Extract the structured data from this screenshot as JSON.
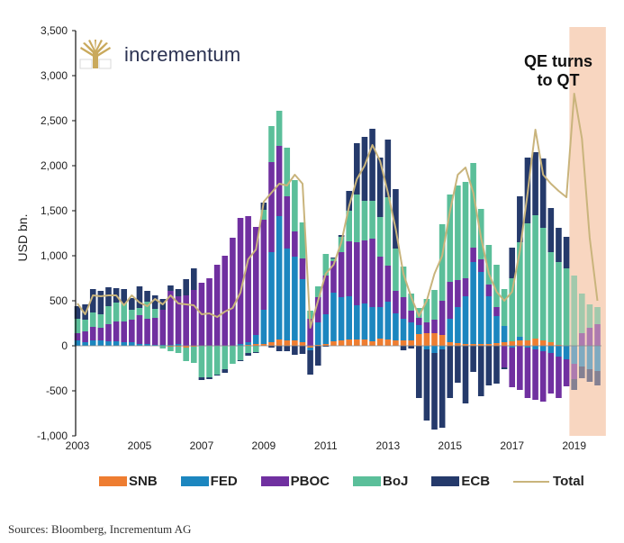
{
  "brand": {
    "name": "incrementum",
    "logo_icon": "tree-logo-icon"
  },
  "annotation": {
    "line1": "QE turns",
    "line2": "to QT"
  },
  "source": "Sources: Bloomberg, Incrementum AG",
  "colors": {
    "SNB": "#ee7d31",
    "FED": "#1c86bf",
    "PBOC": "#7030a0",
    "BoJ": "#5bbf9a",
    "ECB": "#253a6b",
    "Total": "#c9b47c",
    "highlight": "#f8d6c0"
  },
  "chart_data": {
    "type": "bar",
    "stacked": true,
    "title": "",
    "xlabel": "",
    "ylabel": "USD bn.",
    "ylim": [
      -1000,
      3500
    ],
    "yticks": [
      -1000,
      -500,
      0,
      500,
      1000,
      1500,
      2000,
      2500,
      3000,
      3500
    ],
    "ytick_labels": [
      "-1,000",
      "-500",
      "0",
      "500",
      "1,000",
      "1,500",
      "2,000",
      "2,500",
      "3,000",
      "3,500"
    ],
    "xticks": [
      "2003",
      "2005",
      "2007",
      "2009",
      "2011",
      "2013",
      "2015",
      "2017",
      "2019"
    ],
    "x_start": "2003Q1",
    "frequency": "quarterly",
    "highlight_region": {
      "from": "2019Q1",
      "to": "2019Q4",
      "label": "QE turns to QT"
    },
    "legend": [
      "SNB",
      "FED",
      "PBOC",
      "BoJ",
      "ECB",
      "Total"
    ],
    "legend_position": "bottom",
    "series": [
      {
        "name": "SNB",
        "values": [
          0,
          0,
          0,
          0,
          0,
          0,
          0,
          0,
          0,
          0,
          0,
          0,
          -10,
          -10,
          -20,
          -10,
          0,
          0,
          0,
          0,
          0,
          0,
          10,
          20,
          20,
          40,
          70,
          60,
          60,
          40,
          -20,
          10,
          20,
          50,
          60,
          70,
          70,
          70,
          50,
          80,
          70,
          60,
          60,
          60,
          130,
          140,
          140,
          120,
          40,
          30,
          20,
          20,
          20,
          20,
          30,
          40,
          50,
          60,
          60,
          80,
          60,
          40,
          10,
          0,
          0,
          0,
          0,
          0
        ]
      },
      {
        "name": "FED",
        "values": [
          60,
          40,
          60,
          60,
          50,
          50,
          40,
          40,
          20,
          20,
          10,
          10,
          10,
          20,
          0,
          0,
          0,
          0,
          0,
          0,
          0,
          20,
          30,
          100,
          380,
          1000,
          1370,
          1020,
          930,
          700,
          -30,
          250,
          330,
          540,
          480,
          480,
          380,
          400,
          380,
          350,
          420,
          300,
          240,
          200,
          100,
          -40,
          -80,
          -40,
          260,
          400,
          530,
          910,
          800,
          530,
          300,
          180,
          -20,
          40,
          -20,
          -40,
          -60,
          -80,
          -120,
          -150,
          -200,
          -230,
          -260,
          -280
        ]
      },
      {
        "name": "PBOC",
        "values": [
          80,
          120,
          150,
          140,
          190,
          220,
          230,
          250,
          320,
          280,
          300,
          390,
          600,
          530,
          560,
          620,
          700,
          750,
          900,
          1000,
          1200,
          1400,
          1400,
          1200,
          1000,
          1000,
          780,
          580,
          280,
          230,
          300,
          280,
          430,
          350,
          500,
          610,
          700,
          700,
          760,
          560,
          400,
          250,
          240,
          130,
          80,
          120,
          150,
          380,
          410,
          300,
          200,
          160,
          140,
          130,
          100,
          -240,
          -440,
          -490,
          -560,
          -560,
          -560,
          -450,
          -460,
          -300,
          -170,
          140,
          200,
          240
        ]
      },
      {
        "name": "BoJ",
        "values": [
          160,
          130,
          160,
          150,
          200,
          210,
          200,
          110,
          80,
          190,
          100,
          -30,
          -50,
          -70,
          -150,
          -180,
          -350,
          -350,
          -320,
          -260,
          -200,
          -160,
          -80,
          -70,
          110,
          400,
          390,
          540,
          570,
          400,
          90,
          120,
          240,
          30,
          170,
          340,
          530,
          440,
          420,
          440,
          760,
          470,
          340,
          190,
          110,
          260,
          330,
          850,
          970,
          1050,
          1070,
          940,
          560,
          440,
          470,
          410,
          700,
          1050,
          1300,
          1370,
          1250,
          1000,
          920,
          860,
          780,
          440,
          260,
          190
        ]
      },
      {
        "name": "ECB",
        "values": [
          140,
          170,
          260,
          260,
          210,
          160,
          160,
          130,
          240,
          120,
          150,
          120,
          60,
          80,
          180,
          240,
          -30,
          -20,
          -10,
          -40,
          0,
          -10,
          -30,
          -10,
          80,
          -20,
          -60,
          -60,
          -100,
          -90,
          -270,
          -220,
          -10,
          10,
          20,
          220,
          570,
          710,
          800,
          660,
          640,
          660,
          -50,
          -30,
          -580,
          -790,
          -850,
          -870,
          -580,
          -410,
          -640,
          -290,
          -560,
          -440,
          -420,
          -20,
          340,
          510,
          730,
          700,
          770,
          490,
          380,
          350,
          -120,
          -130,
          -140,
          -160
        ]
      },
      {
        "name": "Total",
        "values": [
          470,
          350,
          560,
          550,
          560,
          560,
          450,
          560,
          480,
          440,
          520,
          460,
          560,
          470,
          460,
          450,
          350,
          360,
          320,
          380,
          420,
          590,
          960,
          1070,
          1600,
          1700,
          1800,
          1780,
          1900,
          1800,
          200,
          500,
          800,
          900,
          1150,
          1550,
          1850,
          2000,
          2230,
          2050,
          1700,
          1300,
          800,
          540,
          330,
          500,
          800,
          1000,
          1500,
          1900,
          1980,
          1700,
          1200,
          800,
          600,
          500,
          600,
          1050,
          1700,
          2400,
          1900,
          1800,
          1720,
          1650,
          2800,
          2300,
          1200,
          500
        ]
      }
    ],
    "note": "Stacked quarterly net changes by central bank, positive values stacked upward and negative values stacked downward from zero; Total shown as a line."
  }
}
